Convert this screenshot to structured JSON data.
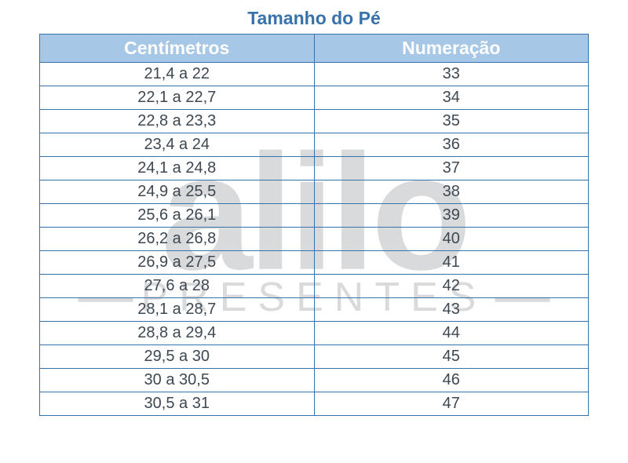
{
  "title": "Tamanho do Pé",
  "watermark": {
    "main": "alilo",
    "sub": "PRESENTES"
  },
  "colors": {
    "title_color": "#3872ad",
    "header_bg": "#a6c7e5",
    "header_text": "#ffffff",
    "border_color": "#3872ad",
    "cell_text": "#3d4852",
    "watermark_color": "#d9dadb",
    "background": "#ffffff"
  },
  "typography": {
    "title_fontsize": 23,
    "header_fontsize": 23,
    "cell_fontsize": 20,
    "watermark_main_fontsize": 210,
    "watermark_sub_fontsize": 52
  },
  "table": {
    "columns": [
      "Centímetros",
      "Numeração"
    ],
    "rows": [
      [
        "21,4 a 22",
        "33"
      ],
      [
        "22,1 a 22,7",
        "34"
      ],
      [
        "22,8 a 23,3",
        "35"
      ],
      [
        "23,4 a 24",
        "36"
      ],
      [
        "24,1 a 24,8",
        "37"
      ],
      [
        "24,9 a 25,5",
        "38"
      ],
      [
        "25,6 a 26,1",
        "39"
      ],
      [
        "26,2 a 26,8",
        "40"
      ],
      [
        "26,9 a 27,5",
        "41"
      ],
      [
        "27,6 a 28",
        "42"
      ],
      [
        "28,1 a 28,7",
        "43"
      ],
      [
        "28,8 a 29,4",
        "44"
      ],
      [
        "29,5 a 30",
        "45"
      ],
      [
        "30 a 30,5",
        "46"
      ],
      [
        "30,5 a 31",
        "47"
      ]
    ]
  }
}
